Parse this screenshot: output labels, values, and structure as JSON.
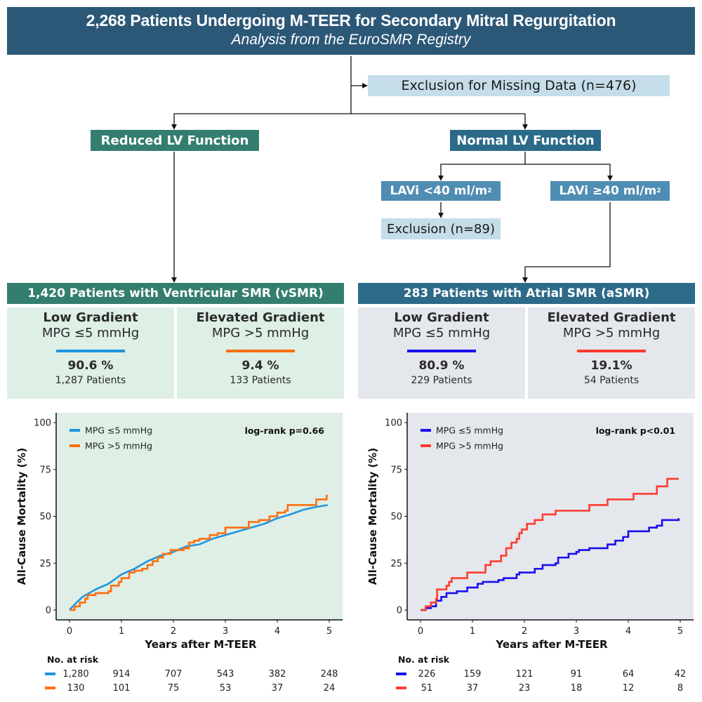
{
  "header": {
    "title": "2,268 Patients Undergoing M-TEER for Secondary Mitral Regurgitation",
    "subtitle": "Analysis from the EuroSMR Registry"
  },
  "flow": {
    "exclusion_missing": "Exclusion for Missing Data (n=476)",
    "reduced_lv": "Reduced LV Function",
    "normal_lv": "Normal LV Function",
    "lavi_lt": "LAVi <40 ml/m",
    "lavi_ge": "LAVi ≥40 ml/m",
    "lavi_unit_sup": "2",
    "exclusion_89": "Exclusion (n=89)"
  },
  "groups": [
    {
      "title": "1,420 Patients with Ventricular SMR (vSMR)",
      "color": "#347e6f",
      "subgroups": [
        {
          "label": "Low Gradient",
          "criterion": "MPG ≤5 mmHg",
          "color": "#1f95e0",
          "percent": "90.6 %",
          "patients": "1,287 Patients"
        },
        {
          "label": "Elevated Gradient",
          "criterion": "MPG >5 mmHg",
          "color": "#ff6f0e",
          "percent": "9.4 %",
          "patients": "133 Patients"
        }
      ]
    },
    {
      "title": "283 Patients with Atrial SMR (aSMR)",
      "color": "#2c6a8a",
      "subgroups": [
        {
          "label": "Low Gradient",
          "criterion": "MPG ≤5 mmHg",
          "color": "#1a0ff0",
          "percent": "80.9 %",
          "patients": "229 Patients"
        },
        {
          "label": "Elevated Gradient",
          "criterion": "MPG >5 mmHg",
          "color": "#ff3b30",
          "percent": "19.1%",
          "patients": "54 Patients"
        }
      ]
    }
  ],
  "chart_data": [
    {
      "type": "line",
      "subtype": "kaplan-meier-cumulative-incidence",
      "panel": "vSMR",
      "background": "#dfefe5",
      "xlabel": "Years after M-TEER",
      "ylabel": "All-Cause Mortality (%)",
      "xlim": [
        0,
        5
      ],
      "ylim": [
        0,
        100
      ],
      "xticks": [
        "0",
        "1",
        "2",
        "3",
        "4",
        "5"
      ],
      "yticks": [
        "0",
        "25",
        "50",
        "75",
        "100"
      ],
      "grid": false,
      "legend_position": "top-left",
      "annotation": "log-rank p=0.66",
      "series": [
        {
          "name": "MPG ≤5 mmHg",
          "color": "#1f95e0",
          "step": false,
          "x": [
            0,
            0.1,
            0.25,
            0.5,
            0.75,
            1,
            1.25,
            1.5,
            1.75,
            2,
            2.25,
            2.5,
            2.75,
            3,
            3.25,
            3.5,
            3.75,
            4,
            4.25,
            4.5,
            4.75,
            4.97
          ],
          "y": [
            0,
            3,
            7,
            11,
            14,
            19,
            22,
            26,
            29,
            31,
            34,
            35,
            38,
            40,
            42,
            44,
            46,
            49,
            51,
            53.5,
            55,
            56
          ]
        },
        {
          "name": "MPG >5 mmHg",
          "color": "#ff6f0e",
          "step": true,
          "x": [
            0,
            0.1,
            0.2,
            0.3,
            0.35,
            0.5,
            0.75,
            0.8,
            0.95,
            1.0,
            1.15,
            1.25,
            1.4,
            1.5,
            1.6,
            1.7,
            1.8,
            1.95,
            2.2,
            2.3,
            2.4,
            2.5,
            2.7,
            2.85,
            3.0,
            3.45,
            3.65,
            3.85,
            4.0,
            4.15,
            4.2,
            4.75,
            4.95,
            4.97
          ],
          "y": [
            0,
            2,
            4,
            6,
            8,
            9,
            10,
            13,
            15,
            17,
            20,
            21,
            22,
            24,
            26,
            28,
            30,
            32,
            33,
            36,
            37,
            38,
            40,
            41,
            44,
            47,
            48,
            50,
            52,
            53,
            56,
            59,
            61,
            61
          ]
        }
      ],
      "risk_table": {
        "title": "No. at risk",
        "rows": [
          {
            "color": "#1f95e0",
            "values": [
              "1,280",
              "914",
              "707",
              "543",
              "382",
              "248"
            ]
          },
          {
            "color": "#ff6f0e",
            "values": [
              "130",
              "101",
              "75",
              "53",
              "37",
              "24"
            ]
          }
        ]
      }
    },
    {
      "type": "line",
      "subtype": "kaplan-meier-cumulative-incidence",
      "panel": "aSMR",
      "background": "#e4e7ec",
      "xlabel": "Years after M-TEER",
      "ylabel": "All-Cause Mortality (%)",
      "xlim": [
        0,
        5
      ],
      "ylim": [
        0,
        100
      ],
      "xticks": [
        "0",
        "1",
        "2",
        "3",
        "4",
        "5"
      ],
      "yticks": [
        "0",
        "25",
        "50",
        "75",
        "100"
      ],
      "grid": false,
      "legend_position": "top-left",
      "annotation": "log-rank p<0.01",
      "series": [
        {
          "name": "MPG ≤5 mmHg",
          "color": "#1a0ff0",
          "step": true,
          "x": [
            0,
            0.1,
            0.2,
            0.3,
            0.4,
            0.5,
            0.7,
            0.9,
            1.1,
            1.2,
            1.5,
            1.6,
            1.85,
            1.9,
            2.2,
            2.35,
            2.6,
            2.65,
            2.85,
            3.0,
            3.05,
            3.25,
            3.6,
            3.75,
            3.9,
            4.0,
            4.4,
            4.55,
            4.65,
            4.97
          ],
          "y": [
            0,
            1,
            2,
            5,
            7,
            9,
            10,
            12,
            14,
            15,
            16,
            17,
            19,
            20,
            22,
            24,
            25,
            28,
            30,
            31,
            32,
            33,
            35,
            37,
            39,
            42,
            44,
            45,
            48,
            49
          ]
        },
        {
          "name": "MPG >5 mmHg",
          "color": "#ff3b30",
          "step": true,
          "x": [
            0,
            0.1,
            0.2,
            0.3,
            0.32,
            0.5,
            0.55,
            0.6,
            0.9,
            1.25,
            1.35,
            1.55,
            1.65,
            1.75,
            1.85,
            1.9,
            1.95,
            2.05,
            2.2,
            2.35,
            2.6,
            3.25,
            3.6,
            4.1,
            4.55,
            4.75,
            4.97
          ],
          "y": [
            0,
            2,
            4,
            6,
            11,
            13,
            15,
            17,
            20,
            24,
            26,
            29,
            33,
            36,
            38,
            41,
            43,
            46,
            48,
            51,
            53,
            56,
            59,
            62,
            66,
            70,
            70
          ]
        }
      ],
      "risk_table": {
        "title": "No. at risk",
        "rows": [
          {
            "color": "#1a0ff0",
            "values": [
              "226",
              "159",
              "121",
              "91",
              "64",
              "42"
            ]
          },
          {
            "color": "#ff3b30",
            "values": [
              "51",
              "37",
              "23",
              "18",
              "12",
              "8"
            ]
          }
        ]
      }
    }
  ]
}
